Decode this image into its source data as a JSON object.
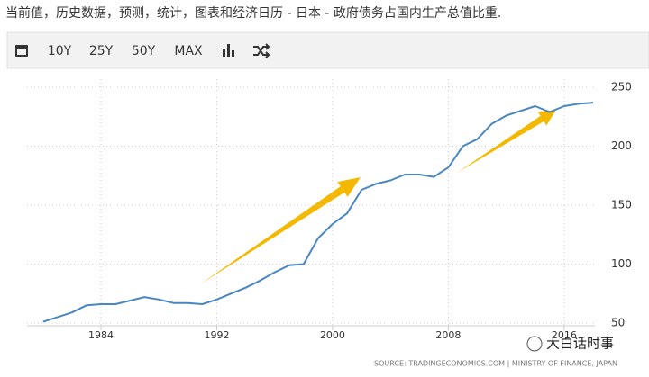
{
  "header": {
    "title": "当前值，历史数据，预测，统计，图表和经济日历 - 日本 - 政府债务占国内生产总值比重."
  },
  "toolbar": {
    "buttons": [
      "10Y",
      "25Y",
      "50Y",
      "MAX"
    ]
  },
  "chart_data": {
    "type": "line",
    "x": [
      1980,
      1981,
      1982,
      1983,
      1984,
      1985,
      1986,
      1987,
      1988,
      1989,
      1990,
      1991,
      1992,
      1993,
      1994,
      1995,
      1996,
      1997,
      1998,
      1999,
      2000,
      2001,
      2002,
      2003,
      2004,
      2005,
      2006,
      2007,
      2008,
      2009,
      2010,
      2011,
      2012,
      2013,
      2014,
      2015,
      2016,
      2017,
      2018
    ],
    "values": [
      51,
      55,
      59,
      65,
      66,
      66,
      69,
      72,
      70,
      67,
      67,
      66,
      70,
      75,
      80,
      86,
      93,
      99,
      100,
      122,
      134,
      143,
      163,
      168,
      171,
      176,
      176,
      174,
      182,
      200,
      206,
      219,
      226,
      230,
      234,
      229,
      234,
      236,
      237
    ],
    "color": "#4a86c0",
    "xlim": [
      1979,
      2018
    ],
    "xticks": [
      1984,
      1992,
      2000,
      2008,
      2016
    ],
    "ylim": [
      45,
      255
    ],
    "yticks": [
      50,
      100,
      150,
      200,
      250
    ],
    "grid": true
  },
  "source": "SOURCE: TRADINGECONOMICS.COM | MINISTRY OF FINANCE, JAPAN",
  "watermark": "大白话时事"
}
